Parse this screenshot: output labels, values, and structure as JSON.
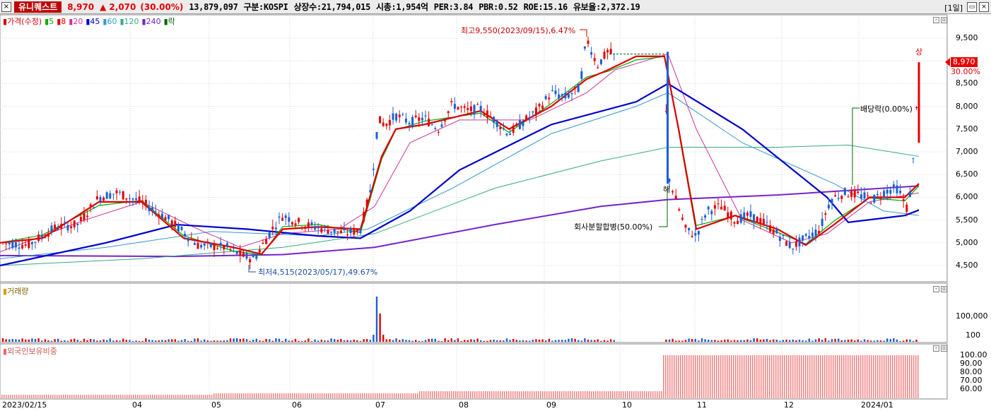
{
  "header": {
    "close_glyph": "×",
    "stock_name": "유니퀘스트",
    "price": "8,970",
    "arrow": "▲",
    "change": "2,070",
    "change_pct": "(30.00%)",
    "volume": "13,879,097",
    "market": "구분:KOSPI",
    "listed_shares": "상장수:21,794,015",
    "market_cap": "시총:1,954억",
    "per": "PER:3.84",
    "pbr": "PBR:0.52",
    "roe": "ROE:15.16",
    "float_ratio": "유보율:2,372.19",
    "period": "[1일]",
    "minimize_glyph": "▭",
    "close_window_glyph": "×"
  },
  "price_panel": {
    "legend": [
      {
        "text": "가격(수정)",
        "color": "#cc0000"
      },
      {
        "text": "5",
        "color": "#00aa00"
      },
      {
        "text": "8",
        "color": "#dd0000"
      },
      {
        "text": "20",
        "color": "#cc3399"
      },
      {
        "text": "45",
        "color": "#0000cc"
      },
      {
        "text": "60",
        "color": "#3399cc"
      },
      {
        "text": "120",
        "color": "#33aa88"
      },
      {
        "text": "240",
        "color": "#7722cc"
      },
      {
        "text": "락",
        "color": "#006600"
      }
    ],
    "y_ticks": [
      "9,500",
      "9,000",
      "8,500",
      "8,000",
      "7,500",
      "7,000",
      "6,500",
      "6,000",
      "5,500",
      "5,000",
      "4,500"
    ],
    "current_price_box": "8,970",
    "current_pct": "30.00%",
    "annotations": {
      "high": "최고9,550(2023/09/15),6.47%",
      "low": "최저4,515(2023/05/17),49.67%",
      "split": "회사분할합병(50.00%)",
      "dividend": "배당락(0.00%)",
      "upper_limit": "상",
      "ex_marker": "해"
    }
  },
  "volume_panel": {
    "title": "거래량",
    "y_ticks": [
      "100,000",
      "100"
    ]
  },
  "foreign_panel": {
    "title": "외국인보유비중",
    "y_ticks": [
      "100.00",
      "90.00",
      "80.00",
      "70.00",
      "60.00"
    ]
  },
  "x_axis": [
    "2023/02/15",
    "04",
    "05",
    "06",
    "07",
    "08",
    "09",
    "10",
    "11",
    "12",
    "2024/01"
  ],
  "colors": {
    "up": "#e60000",
    "down": "#1a5fd6",
    "ma5": "#00aa00",
    "ma8": "#dd0000",
    "ma20": "#cc3399",
    "ma45": "#0000cc",
    "ma60": "#3399cc",
    "ma120": "#33aa88",
    "ma240": "#7722cc"
  }
}
